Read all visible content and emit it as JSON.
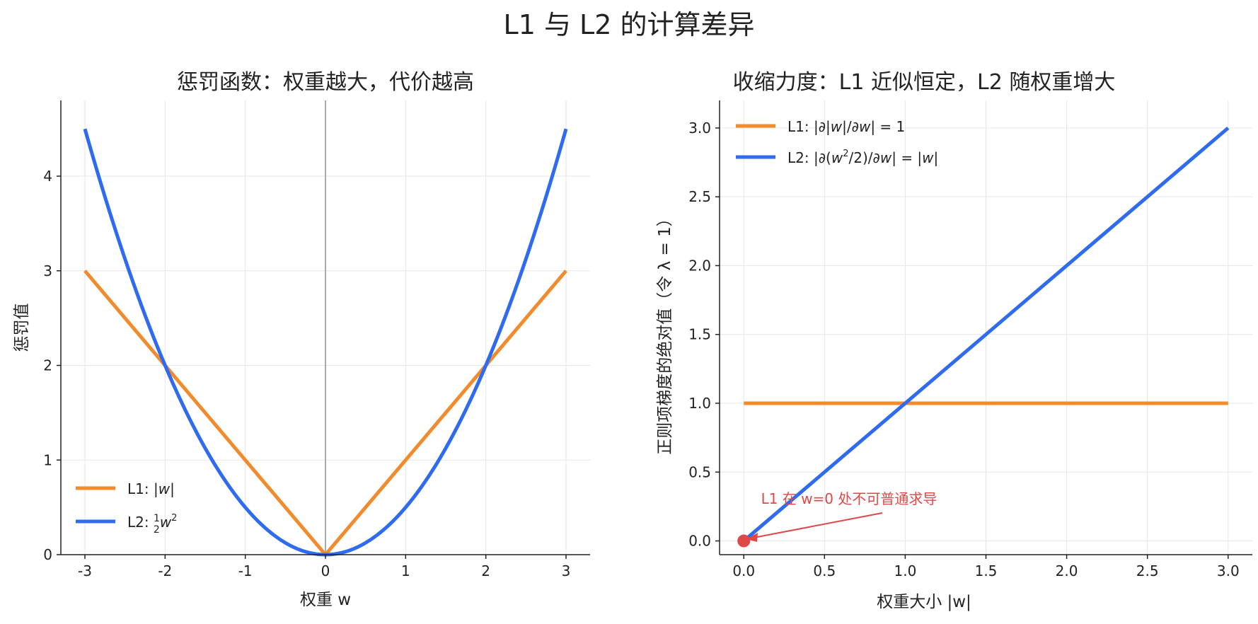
{
  "figure": {
    "title": "L1 与 L2 的计算差异"
  },
  "colors": {
    "l1": "#f08c2e",
    "l2": "#2f6bf0",
    "annotation": "#e04848",
    "zero_line": "#aaaaaa"
  },
  "chart_data": [
    {
      "type": "line",
      "title": "惩罚函数：权重越大，代价越高",
      "xlabel": "权重 w",
      "ylabel": "惩罚值",
      "xlim": [
        -3.3,
        3.3
      ],
      "ylim": [
        0,
        4.8
      ],
      "xticks": [
        -3,
        -2,
        -1,
        0,
        1,
        2,
        3
      ],
      "yticks": [
        0,
        1,
        2,
        3,
        4
      ],
      "grid": true,
      "vertical_line_at_x": 0,
      "legend_position": "lower-left",
      "x": [
        -3,
        -2.5,
        -2,
        -1.5,
        -1,
        -0.5,
        0,
        0.5,
        1,
        1.5,
        2,
        2.5,
        3
      ],
      "series": [
        {
          "name": "L1: |w|",
          "color_key": "l1",
          "values": [
            3,
            2.5,
            2,
            1.5,
            1,
            0.5,
            0,
            0.5,
            1,
            1.5,
            2,
            2.5,
            3
          ]
        },
        {
          "name": "L2: ½w²",
          "color_key": "l2",
          "values": [
            4.5,
            3.125,
            2,
            1.125,
            0.5,
            0.125,
            0,
            0.125,
            0.5,
            1.125,
            2,
            3.125,
            4.5
          ]
        }
      ]
    },
    {
      "type": "line",
      "title": "收缩力度：L1 近似恒定，L2 随权重增大",
      "xlabel": "权重大小 |w|",
      "ylabel": "正则项梯度的绝对值（令 λ = 1）",
      "xlim": [
        -0.15,
        3.15
      ],
      "ylim": [
        -0.1,
        3.2
      ],
      "xticks": [
        0,
        0.5,
        1,
        1.5,
        2,
        2.5,
        3
      ],
      "yticks": [
        0,
        0.5,
        1,
        1.5,
        2,
        2.5,
        3
      ],
      "grid": true,
      "legend_position": "upper-left",
      "x": [
        0,
        0.5,
        1,
        1.5,
        2,
        2.5,
        3
      ],
      "series": [
        {
          "name": "L1: |∂|w|/∂w| = 1",
          "color_key": "l1",
          "values": [
            1,
            1,
            1,
            1,
            1,
            1,
            1
          ]
        },
        {
          "name": "L2: |∂(w²/2)/∂w| = |w|",
          "color_key": "l2",
          "values": [
            0,
            0.5,
            1,
            1.5,
            2,
            2.5,
            3
          ]
        }
      ],
      "annotation": {
        "text": "L1 在 w=0 处不可普通求导",
        "point": [
          0,
          0
        ]
      }
    }
  ]
}
